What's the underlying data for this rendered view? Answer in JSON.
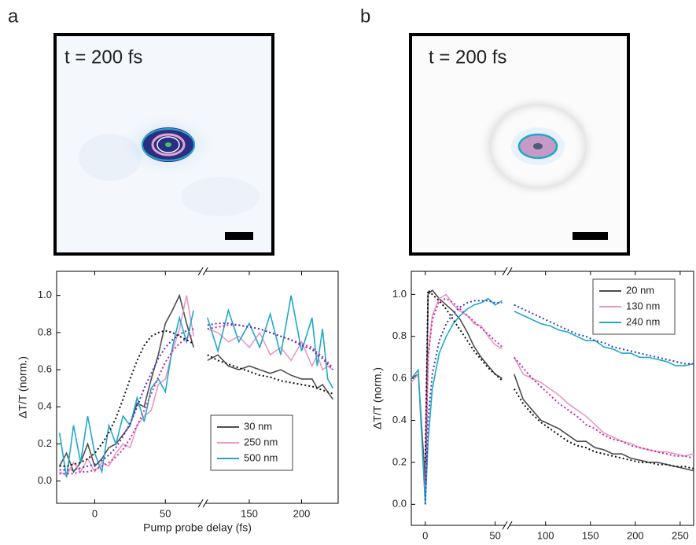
{
  "panels": [
    {
      "label": "a",
      "image_text": "t = 200 fs"
    },
    {
      "label": "b",
      "image_text": "t = 200 fs"
    }
  ],
  "chart_data": [
    {
      "type": "line",
      "xlabel": "Pump probe delay (fs)",
      "ylabel": "ΔT/T (norm.)",
      "legend": "lower right",
      "xlim": [
        -27,
        235
      ],
      "x_break": [
        75,
        108
      ],
      "ylim": [
        -0.12,
        1.13
      ],
      "xticks": [
        0,
        50,
        150,
        200
      ],
      "yticks": [
        {
          "value": 0,
          "label": "0.0"
        },
        0.2,
        0.4,
        0.6,
        0.8,
        {
          "value": 1,
          "label": "1.0"
        }
      ],
      "x": [
        -25,
        -20,
        -15,
        -10,
        -5,
        0,
        5,
        10,
        15,
        20,
        25,
        30,
        35,
        40,
        45,
        50,
        55,
        60,
        65,
        70,
        110,
        120,
        130,
        140,
        150,
        160,
        170,
        180,
        190,
        200,
        210,
        215,
        220,
        225,
        230
      ],
      "series": [
        {
          "name": "30 nm",
          "color": "#4d4d4d",
          "values": [
            0.08,
            0.15,
            0.05,
            0.1,
            0.2,
            0.08,
            0.12,
            0.18,
            0.2,
            0.25,
            0.3,
            0.42,
            0.4,
            0.55,
            0.68,
            0.85,
            0.92,
            1.0,
            0.85,
            0.72,
            0.65,
            0.68,
            0.62,
            0.6,
            0.62,
            0.6,
            0.58,
            0.6,
            0.57,
            0.55,
            0.55,
            0.5,
            0.52,
            0.48,
            0.44
          ]
        },
        {
          "name": "250 nm",
          "color": "#e49ac4",
          "values": [
            0.05,
            0.03,
            0.1,
            0.05,
            0.12,
            0.05,
            0.1,
            0.08,
            0.15,
            0.2,
            0.18,
            0.3,
            0.35,
            0.38,
            0.52,
            0.55,
            0.7,
            0.82,
            1.0,
            0.78,
            0.82,
            0.8,
            0.75,
            0.78,
            0.72,
            0.8,
            0.68,
            0.72,
            0.65,
            0.75,
            0.62,
            0.68,
            0.6,
            0.62,
            0.6
          ]
        },
        {
          "name": "500 nm",
          "color": "#1fa9c9",
          "values": [
            0.26,
            0.02,
            0.3,
            0.1,
            0.35,
            0.15,
            0.05,
            0.3,
            0.2,
            0.35,
            0.3,
            0.45,
            0.32,
            0.5,
            0.55,
            0.48,
            0.72,
            0.88,
            0.75,
            0.92,
            0.88,
            0.7,
            0.92,
            0.75,
            0.85,
            0.72,
            0.9,
            0.68,
            1.0,
            0.7,
            0.88,
            0.62,
            0.82,
            0.55,
            0.5
          ]
        }
      ],
      "fits": [
        {
          "color": "#111111",
          "values": [
            0.08,
            0.08,
            0.09,
            0.1,
            0.12,
            0.15,
            0.2,
            0.26,
            0.34,
            0.44,
            0.55,
            0.65,
            0.73,
            0.78,
            0.8,
            0.81,
            0.8,
            0.78,
            0.76,
            0.74,
            0.68,
            0.65,
            0.63,
            0.61,
            0.59,
            0.57,
            0.56,
            0.54,
            0.53,
            0.52,
            0.51,
            0.5,
            0.49,
            0.48,
            0.47
          ]
        },
        {
          "color": "#d6209e",
          "values": [
            0.04,
            0.04,
            0.04,
            0.05,
            0.05,
            0.06,
            0.08,
            0.1,
            0.13,
            0.17,
            0.23,
            0.3,
            0.38,
            0.47,
            0.56,
            0.64,
            0.7,
            0.74,
            0.77,
            0.79,
            0.82,
            0.83,
            0.84,
            0.84,
            0.83,
            0.82,
            0.8,
            0.78,
            0.76,
            0.74,
            0.72,
            0.69,
            0.67,
            0.64,
            0.61
          ]
        },
        {
          "color": "#5a2ec8",
          "values": [
            0.06,
            0.06,
            0.06,
            0.07,
            0.08,
            0.09,
            0.11,
            0.14,
            0.18,
            0.24,
            0.31,
            0.4,
            0.5,
            0.58,
            0.66,
            0.72,
            0.76,
            0.79,
            0.81,
            0.82,
            0.84,
            0.85,
            0.85,
            0.84,
            0.83,
            0.82,
            0.8,
            0.78,
            0.76,
            0.73,
            0.71,
            0.68,
            0.66,
            0.63,
            0.6
          ]
        }
      ]
    },
    {
      "type": "line",
      "xlabel": "Pump probe delay (fs)",
      "ylabel": "ΔT/T (norm.)",
      "legend": "upper right",
      "xlim": [
        -10,
        265
      ],
      "x_break": [
        57,
        60
      ],
      "ylim": [
        -0.1,
        1.11
      ],
      "xticks": [
        0,
        50,
        100,
        150,
        200,
        250
      ],
      "yticks": [
        {
          "value": 0,
          "label": "0.0"
        },
        0.2,
        0.4,
        0.6,
        0.8,
        {
          "value": 1,
          "label": "1.0"
        }
      ],
      "x": [
        -10,
        -5,
        0,
        2,
        5,
        10,
        15,
        20,
        25,
        30,
        35,
        40,
        45,
        50,
        55,
        65,
        75,
        85,
        95,
        105,
        115,
        125,
        135,
        145,
        155,
        165,
        175,
        185,
        195,
        205,
        215,
        225,
        235,
        245,
        255,
        265
      ],
      "series": [
        {
          "name": "20 nm",
          "color": "#4d4d4d",
          "values": [
            0.6,
            0.62,
            0.1,
            1.0,
            1.02,
            0.98,
            0.95,
            0.92,
            0.88,
            0.82,
            0.75,
            0.7,
            0.66,
            0.62,
            0.6,
            0.62,
            0.5,
            0.45,
            0.4,
            0.38,
            0.36,
            0.33,
            0.3,
            0.3,
            0.27,
            0.26,
            0.24,
            0.24,
            0.22,
            0.21,
            0.2,
            0.2,
            0.19,
            0.18,
            0.17,
            0.16
          ]
        },
        {
          "name": "130 nm",
          "color": "#e49ac4",
          "values": [
            0.58,
            0.62,
            0.0,
            0.7,
            0.9,
            0.98,
            1.0,
            0.95,
            0.92,
            0.9,
            0.86,
            0.85,
            0.8,
            0.76,
            0.74,
            0.7,
            0.62,
            0.6,
            0.58,
            0.55,
            0.52,
            0.48,
            0.45,
            0.42,
            0.38,
            0.34,
            0.32,
            0.3,
            0.29,
            0.27,
            0.26,
            0.25,
            0.25,
            0.24,
            0.23,
            0.24
          ]
        },
        {
          "name": "240 nm",
          "color": "#1fa9c9",
          "values": [
            0.6,
            0.64,
            0.0,
            0.3,
            0.55,
            0.72,
            0.8,
            0.86,
            0.9,
            0.93,
            0.95,
            0.96,
            0.98,
            0.95,
            0.97,
            0.92,
            0.9,
            0.88,
            0.86,
            0.85,
            0.83,
            0.82,
            0.8,
            0.78,
            0.78,
            0.75,
            0.74,
            0.72,
            0.72,
            0.7,
            0.7,
            0.69,
            0.68,
            0.66,
            0.66,
            0.67
          ]
        }
      ],
      "fits": [
        {
          "color": "#111111",
          "values": [
            null,
            null,
            0.2,
            1.02,
            1.0,
            0.97,
            0.93,
            0.88,
            0.83,
            0.78,
            0.73,
            0.69,
            0.65,
            0.62,
            0.59,
            0.55,
            0.48,
            0.43,
            0.39,
            0.36,
            0.33,
            0.3,
            0.28,
            0.27,
            0.25,
            0.24,
            0.23,
            0.22,
            0.21,
            0.2,
            0.2,
            0.19,
            0.19,
            0.18,
            0.18,
            0.17
          ]
        },
        {
          "color": "#d6209e",
          "values": [
            null,
            null,
            0.1,
            0.7,
            0.88,
            0.97,
            0.98,
            0.96,
            0.93,
            0.9,
            0.87,
            0.84,
            0.81,
            0.78,
            0.75,
            0.7,
            0.65,
            0.6,
            0.56,
            0.52,
            0.48,
            0.45,
            0.42,
            0.38,
            0.36,
            0.33,
            0.31,
            0.3,
            0.28,
            0.27,
            0.26,
            0.25,
            0.24,
            0.23,
            0.23,
            0.22
          ]
        },
        {
          "color": "#2a3fc8",
          "values": [
            null,
            null,
            0.0,
            0.4,
            0.62,
            0.78,
            0.86,
            0.91,
            0.94,
            0.96,
            0.97,
            0.97,
            0.97,
            0.96,
            0.96,
            0.95,
            0.93,
            0.91,
            0.89,
            0.87,
            0.85,
            0.83,
            0.81,
            0.8,
            0.78,
            0.77,
            0.75,
            0.74,
            0.73,
            0.72,
            0.71,
            0.7,
            0.69,
            0.68,
            0.67,
            0.67
          ]
        }
      ]
    }
  ]
}
